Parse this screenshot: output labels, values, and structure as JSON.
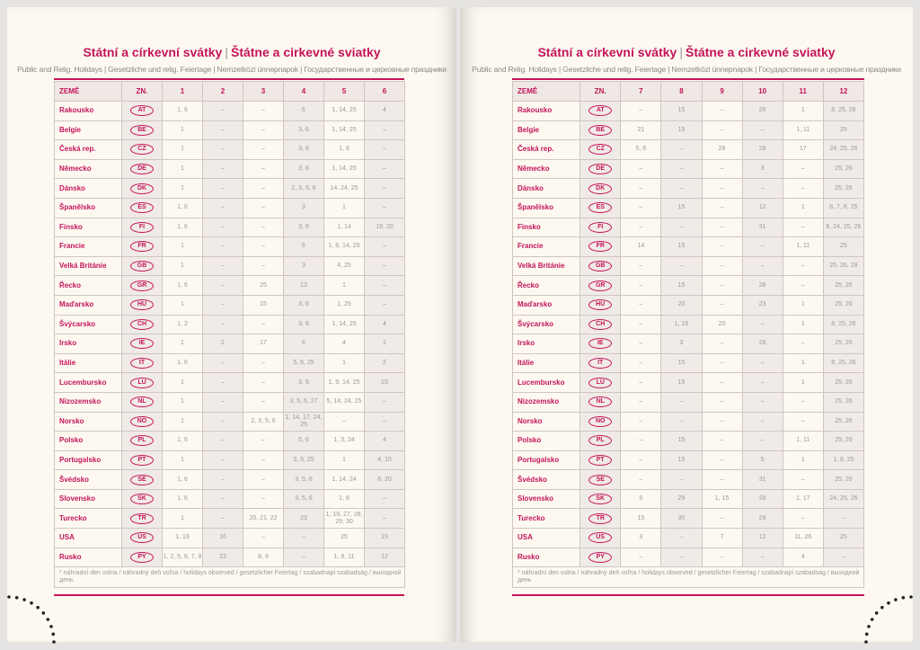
{
  "title_cz": "Státní a církevní svátky",
  "title_sk": "Štátne a cirkevné sviatky",
  "subtitle": "Public and Relig. Holidays | Gesetzliche und relig. Feiertage | Nemzetközi ünnepnapok | Государственные и церковные праздники",
  "accent_color": "#c4145a",
  "header": {
    "country": "ZEMĚ",
    "code": "ZN."
  },
  "footnote": "* náhradní den volna / náhradný deň voľna / holidays observed / gesetzlicher Feiertag / szabadnapi szabadság / выходной день",
  "left": {
    "months": [
      "1",
      "2",
      "3",
      "4",
      "5",
      "6"
    ],
    "rows": [
      [
        "Rakousko",
        "AT",
        "1, 6",
        "–",
        "–",
        "6",
        "1, 14, 25",
        "4"
      ],
      [
        "Belgie",
        "BE",
        "1",
        "–",
        "–",
        "3, 6",
        "1, 14, 25",
        "–"
      ],
      [
        "Česká rep.",
        "CZ",
        "1",
        "–",
        "–",
        "3, 6",
        "1, 8",
        "–"
      ],
      [
        "Německo",
        "DE",
        "1",
        "–",
        "–",
        "3, 6",
        "1, 14, 25",
        "–"
      ],
      [
        "Dánsko",
        "DK",
        "1",
        "–",
        "–",
        "2, 3, 5, 6",
        "14, 24, 25",
        "–"
      ],
      [
        "Španělsko",
        "ES",
        "1, 6",
        "–",
        "–",
        "3",
        "1",
        "–"
      ],
      [
        "Finsko",
        "FI",
        "1, 6",
        "–",
        "–",
        "3, 6",
        "1, 14",
        "19, 20"
      ],
      [
        "Francie",
        "FR",
        "1",
        "–",
        "–",
        "6",
        "1, 8, 14, 25",
        "–"
      ],
      [
        "Velká Británie",
        "GB",
        "1",
        "–",
        "–",
        "3",
        "4, 25",
        "–"
      ],
      [
        "Řecko",
        "GR",
        "1, 6",
        "–",
        "25",
        "13",
        "1",
        "–"
      ],
      [
        "Maďarsko",
        "HU",
        "1",
        "–",
        "15",
        "3, 6",
        "1, 25",
        "–"
      ],
      [
        "Švýcarsko",
        "CH",
        "1, 2",
        "–",
        "–",
        "3, 6",
        "1, 14, 25",
        "4"
      ],
      [
        "Irsko",
        "IE",
        "1",
        "2",
        "17",
        "6",
        "4",
        "1"
      ],
      [
        "Itálie",
        "IT",
        "1, 6",
        "–",
        "–",
        "5, 6, 25",
        "1",
        "2"
      ],
      [
        "Lucembursko",
        "LU",
        "1",
        "–",
        "–",
        "3, 6",
        "1, 9, 14, 25",
        "23"
      ],
      [
        "Nizozemsko",
        "NL",
        "1",
        "–",
        "–",
        "3, 5, 6, 27",
        "5, 14, 24, 25",
        "–"
      ],
      [
        "Norsko",
        "NO",
        "1",
        "–",
        "2, 3, 5, 6",
        "1, 14, 17, 24, 25",
        "–",
        "–"
      ],
      [
        "Polsko",
        "PL",
        "1, 6",
        "–",
        "–",
        "5, 6",
        "1, 3, 24",
        "4"
      ],
      [
        "Portugalsko",
        "PT",
        "1",
        "–",
        "–",
        "3, 5, 25",
        "1",
        "4, 10"
      ],
      [
        "Švédsko",
        "SE",
        "1, 6",
        "–",
        "–",
        "3, 5, 6",
        "1, 14, 24",
        "6, 20"
      ],
      [
        "Slovensko",
        "SK",
        "1, 6",
        "–",
        "–",
        "3, 5, 6",
        "1, 8",
        "–"
      ],
      [
        "Turecko",
        "TR",
        "1",
        "–",
        "20, 21, 22",
        "23",
        "1, 19, 27, 28, 29, 30",
        "–"
      ],
      [
        "USA",
        "US",
        "1, 19",
        "16",
        "–",
        "–",
        "25",
        "19"
      ],
      [
        "Rusko",
        "PY",
        "1, 2, 5, 6, 7, 8",
        "23",
        "8, 9",
        "–",
        "1, 9, 11",
        "12"
      ]
    ]
  },
  "right": {
    "months": [
      "7",
      "8",
      "9",
      "10",
      "11",
      "12"
    ],
    "rows": [
      [
        "Rakousko",
        "AT",
        "–",
        "15",
        "–",
        "26",
        "1",
        "8, 25, 26"
      ],
      [
        "Belgie",
        "BE",
        "21",
        "15",
        "–",
        "–",
        "1, 11",
        "25"
      ],
      [
        "Česká rep.",
        "CZ",
        "5, 6",
        "–",
        "28",
        "28",
        "17",
        "24, 25, 26"
      ],
      [
        "Německo",
        "DE",
        "–",
        "–",
        "–",
        "3",
        "–",
        "25, 26"
      ],
      [
        "Dánsko",
        "DK",
        "–",
        "–",
        "–",
        "–",
        "–",
        "25, 26"
      ],
      [
        "Španělsko",
        "ES",
        "–",
        "15",
        "–",
        "12",
        "1",
        "6, 7, 8, 25"
      ],
      [
        "Finsko",
        "FI",
        "–",
        "–",
        "–",
        "31",
        "–",
        "6, 24, 25, 26"
      ],
      [
        "Francie",
        "FR",
        "14",
        "15",
        "–",
        "–",
        "1, 11",
        "25"
      ],
      [
        "Velká Británie",
        "GB",
        "–",
        "–",
        "–",
        "–",
        "–",
        "25, 26, 28"
      ],
      [
        "Řecko",
        "GR",
        "–",
        "15",
        "–",
        "28",
        "–",
        "25, 26"
      ],
      [
        "Maďarsko",
        "HU",
        "–",
        "20",
        "–",
        "23",
        "1",
        "25, 26"
      ],
      [
        "Švýcarsko",
        "CH",
        "–",
        "1, 15",
        "20",
        "–",
        "1",
        "8, 25, 26"
      ],
      [
        "Irsko",
        "IE",
        "–",
        "3",
        "–",
        "26",
        "–",
        "25, 26"
      ],
      [
        "Itálie",
        "IT",
        "–",
        "15",
        "–",
        "–",
        "1",
        "8, 25, 26"
      ],
      [
        "Lucembursko",
        "LU",
        "–",
        "15",
        "–",
        "–",
        "1",
        "25, 26"
      ],
      [
        "Nizozemsko",
        "NL",
        "–",
        "–",
        "–",
        "–",
        "–",
        "25, 26"
      ],
      [
        "Norsko",
        "NO",
        "–",
        "–",
        "–",
        "–",
        "–",
        "25, 26"
      ],
      [
        "Polsko",
        "PL",
        "–",
        "15",
        "–",
        "–",
        "1, 11",
        "25, 26"
      ],
      [
        "Portugalsko",
        "PT",
        "–",
        "15",
        "–",
        "5",
        "1",
        "1, 8, 25"
      ],
      [
        "Švédsko",
        "SE",
        "–",
        "–",
        "–",
        "31",
        "–",
        "25, 26"
      ],
      [
        "Slovensko",
        "SK",
        "5",
        "29",
        "1, 15",
        "28",
        "1, 17",
        "24, 25, 26"
      ],
      [
        "Turecko",
        "TR",
        "15",
        "30",
        "–",
        "29",
        "–",
        "–"
      ],
      [
        "USA",
        "US",
        "3",
        "–",
        "7",
        "12",
        "11, 26",
        "25"
      ],
      [
        "Rusko",
        "PY",
        "–",
        "–",
        "–",
        "–",
        "4",
        "–"
      ]
    ]
  }
}
